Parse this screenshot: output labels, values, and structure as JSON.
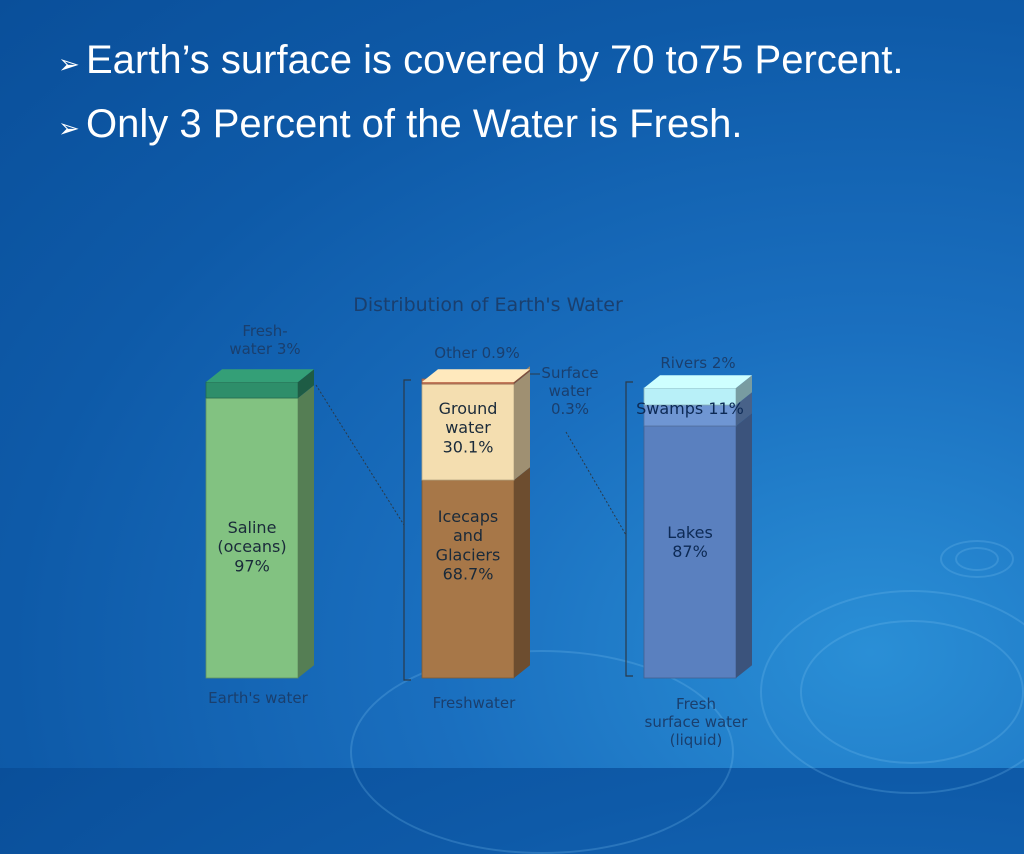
{
  "slide": {
    "bullets": [
      "Earth’s surface is covered by 70 to75 Percent.",
      "Only 3 Percent of the Water is Fresh."
    ],
    "bullet_glyph": "arrowhead-icon",
    "colors": {
      "background": "#1565b5",
      "text": "#ffffff"
    }
  },
  "chart_data": {
    "type": "bar",
    "title": "Distribution of Earth's Water",
    "stacked": true,
    "columns": [
      {
        "name": "Earth's water",
        "label_lines": [
          "Earth's water"
        ],
        "segments": [
          {
            "label_lines": [
              "Saline",
              "(oceans)",
              "97%"
            ],
            "value": 97,
            "color": "#82c281"
          },
          {
            "label_lines": [
              "Fresh-",
              "water 3%"
            ],
            "value": 3,
            "color": "#2e8e6a",
            "callout": true
          }
        ]
      },
      {
        "name": "Freshwater",
        "label_lines": [
          "Freshwater"
        ],
        "segments": [
          {
            "label_lines": [
              "Icecaps",
              "and",
              "Glaciers",
              "68.7%"
            ],
            "value": 68.7,
            "color": "#a77748"
          },
          {
            "label_lines": [
              "Ground",
              "water",
              "30.1%"
            ],
            "value": 30.1,
            "color": "#f4deb0"
          },
          {
            "label_lines": [
              "Surface",
              "water",
              "0.3%"
            ],
            "value": 0.3,
            "color": "#c47a5a",
            "callout": true
          },
          {
            "label_lines": [
              "Other 0.9%"
            ],
            "value": 0.9,
            "color": "#e9d0a9",
            "callout": true
          }
        ]
      },
      {
        "name": "Fresh surface water (liquid)",
        "label_lines": [
          "Fresh",
          "surface water",
          "(liquid)"
        ],
        "segments": [
          {
            "label_lines": [
              "Lakes",
              "87%"
            ],
            "value": 87,
            "color": "#5a80bf"
          },
          {
            "label_lines": [
              "Swamps 11%"
            ],
            "value": 11,
            "color": "#6f96d3"
          },
          {
            "label_lines": [
              "Rivers 2%"
            ],
            "value": 2,
            "color": "#b8f0f8",
            "callout": true
          }
        ]
      }
    ]
  }
}
